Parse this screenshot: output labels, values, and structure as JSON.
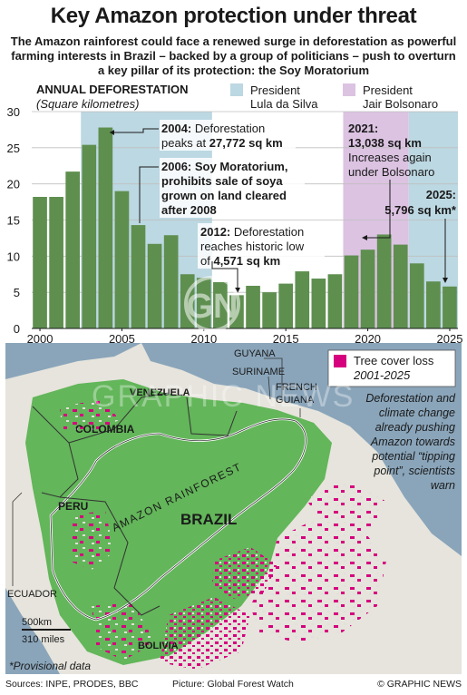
{
  "title": "Key Amazon protection under threat",
  "subtitle": "The Amazon rainforest could face a renewed surge in deforestation as powerful farming interests in Brazil – backed by a group of politicians – push to overturn a key pillar of its protection: the Soy Moratorium",
  "chart_data": {
    "type": "bar",
    "title": "ANNUAL DEFORESTATION",
    "ylabel": "(Square kilometres)",
    "ylim": [
      0,
      30
    ],
    "yticks": [
      0,
      5,
      10,
      15,
      20,
      25,
      30
    ],
    "xticks": [
      "2000",
      "2005",
      "2010",
      "2015",
      "2020",
      "2025"
    ],
    "categories": [
      "2000",
      "2001",
      "2002",
      "2003",
      "2004",
      "2005",
      "2006",
      "2007",
      "2008",
      "2009",
      "2010",
      "2011",
      "2012",
      "2013",
      "2014",
      "2015",
      "2016",
      "2017",
      "2018",
      "2019",
      "2020",
      "2021",
      "2022",
      "2023",
      "2024",
      "2025"
    ],
    "values": [
      18.2,
      18.2,
      21.7,
      25.4,
      27.8,
      19.0,
      14.3,
      11.7,
      12.9,
      7.5,
      7.0,
      6.4,
      4.6,
      5.9,
      5.0,
      6.2,
      7.9,
      6.9,
      7.5,
      10.1,
      10.9,
      13.0,
      11.6,
      9.0,
      6.5,
      5.8
    ],
    "bar_color": "#5e8f4f",
    "shading": [
      {
        "name": "President Lula da Silva",
        "from": "2003",
        "to": "2010",
        "color": "#bcd8e2"
      },
      {
        "name": "President Jair Bolsonaro",
        "from": "2019",
        "to": "2022",
        "color": "#dcc3e2"
      },
      {
        "name": "President Lula da Silva",
        "from": "2023",
        "to": "2025",
        "color": "#bcd8e2"
      }
    ],
    "legend": [
      {
        "label_1": "President",
        "label_2": "Lula da Silva",
        "color": "#bcd8e2"
      },
      {
        "label_1": "President",
        "label_2": "Jair Bolsonaro",
        "color": "#dcc3e2"
      }
    ],
    "annotations": [
      {
        "year": "2004",
        "bold": "2004:",
        "line1": " Deforestation",
        "line2": "peaks at ",
        "line2_bold": "27,772 sq km"
      },
      {
        "year": "2006",
        "bold1": "2006: Soy Moratorium,",
        "bold2": "prohibits sale of soya",
        "bold3": "grown on land cleared",
        "bold4": "after 2008"
      },
      {
        "year": "2012",
        "bold": "2012:",
        "line1": " Deforestation",
        "line2": "reaches historic low",
        "line3": "of ",
        "line3_bold": "4,571 sq km"
      },
      {
        "year": "2021",
        "bold1": "2021:",
        "bold2": "13,038 sq km",
        "line1": "Increases again",
        "line2": "under Bolsonaro"
      },
      {
        "year": "2025",
        "bold1": "2025:",
        "bold2": "5,796 sq km*"
      }
    ]
  },
  "map": {
    "legend_label_1": "Tree cover loss",
    "legend_label_2": "2001-2025",
    "legend_color": "#d6007e",
    "forest_color": "#63b65a",
    "ocean_color": "#8aa5ba",
    "land_color": "#e6e4dc",
    "labels": {
      "venezuela": "VENEZUELA",
      "guyana": "GUYANA",
      "suriname": "SURINAME",
      "french_guiana_1": "FRENCH",
      "french_guiana_2": "GUIANA",
      "colombia": "COLOMBIA",
      "peru": "PERU",
      "brazil": "BRAZIL",
      "bolivia": "BOLIVIA",
      "ecuador": "ECUADOR",
      "rainforest": "AMAZON RAINFOREST"
    },
    "note_lines": [
      "Deforestation and",
      "climate change",
      "already pushing",
      "Amazon towards",
      "potential “tipping",
      "point”, scientists",
      "warn"
    ],
    "scale_km": "500km",
    "scale_miles": "310 miles",
    "provisional": "*Provisional data"
  },
  "watermark": "GRAPHIC NEWS",
  "footer": {
    "sources": "Sources: INPE, PRODES, BBC",
    "picture": "Picture: Global Forest Watch",
    "credit": "© GRAPHIC NEWS"
  }
}
